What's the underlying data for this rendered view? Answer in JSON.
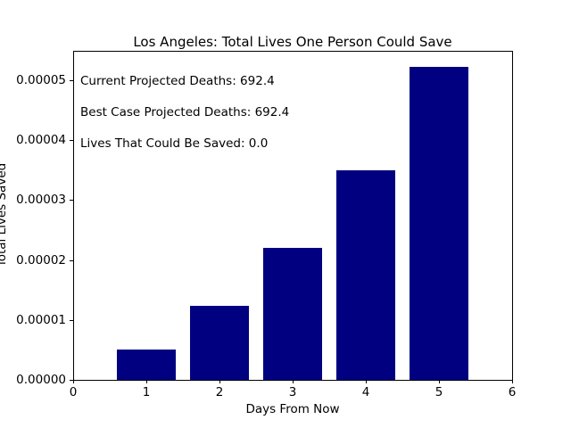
{
  "chart_data": {
    "type": "bar",
    "title": "Los Angeles: Total Lives One Person Could Save",
    "xlabel": "Days From Now",
    "ylabel": "Total Lives Saved",
    "x": [
      1,
      2,
      3,
      4,
      5
    ],
    "values": [
      5.1e-06,
      1.23e-05,
      2.21e-05,
      3.49e-05,
      5.23e-05
    ],
    "bar_width": 0.8,
    "bar_color": "#000080",
    "xlim": [
      0,
      6
    ],
    "ylim": [
      0,
      5.49e-05
    ],
    "xticks": [
      "0",
      "1",
      "2",
      "3",
      "4",
      "5",
      "6"
    ],
    "yticks": [
      "0.00000",
      "0.00001",
      "0.00002",
      "0.00003",
      "0.00004",
      "0.00005"
    ],
    "grid": false,
    "legend": false,
    "annotations": [
      "Current Projected Deaths: 692.4",
      "Best Case Projected Deaths: 692.4",
      "Lives That Could Be Saved: 0.0"
    ]
  }
}
